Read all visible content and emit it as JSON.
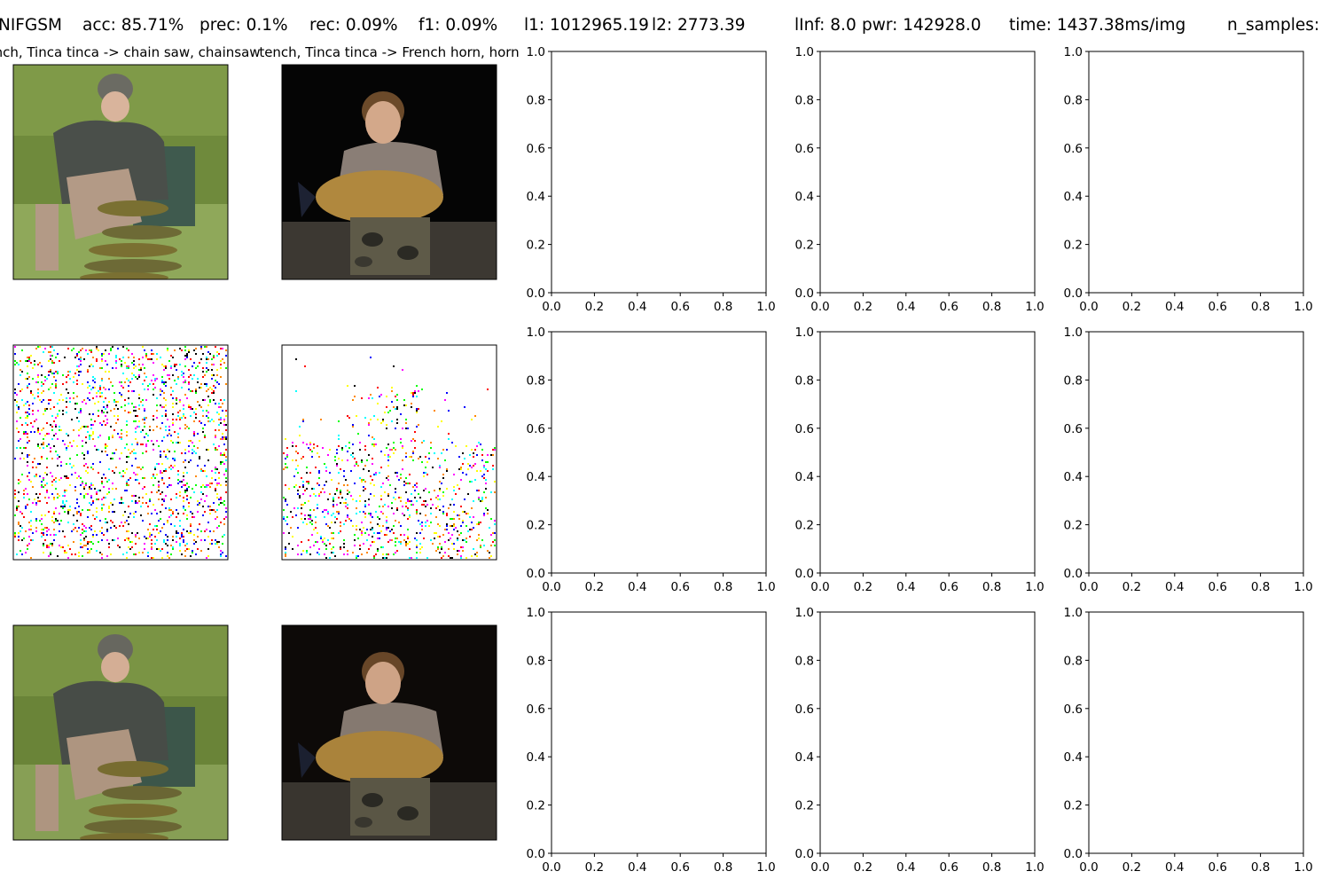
{
  "figure": {
    "suptitle_segments": [
      "NIFGSM",
      "acc: 85.71%",
      "prec: 0.1%",
      "rec: 0.09%",
      "f1: 0.09%",
      "l1: 1012965.19",
      "l2: 2773.39",
      "lInf: 8.0",
      "pwr: 142928.0",
      "time: 1437.38ms/img",
      "n_samples:"
    ]
  },
  "image_columns": [
    {
      "title": "tench, Tinca tinca -> chain saw, chainsaw",
      "original": {
        "name": "man-kneeling-with-tench-fish",
        "colors": {
          "background": "#6f8a3c",
          "grass": "#8fa85a",
          "jacket": "#4a4f4a",
          "hat": "#6b6b63",
          "skin": "#d9b49c",
          "pants": "#b39a86",
          "net": "#3f5a4e",
          "fish": "#7a7032"
        }
      },
      "perturbation": {
        "name": "sparse-noise-perturbation",
        "density": 0.12
      },
      "adversarial": {
        "name": "man-kneeling-with-tench-fish-adversarial",
        "colors": {
          "background": "#6a8438",
          "grass": "#879f55",
          "jacket": "#474c47",
          "hat": "#67675f",
          "skin": "#d4ae95",
          "pants": "#ae9580",
          "net": "#3c564a",
          "fish": "#776c30"
        }
      }
    },
    {
      "title": "tench, Tinca tinca -> French horn, horn",
      "original": {
        "name": "boy-holding-bream-fish",
        "colors": {
          "background": "#050505",
          "shirt": "#8a7e76",
          "hair": "#6b4a2a",
          "skin": "#d3a88a",
          "fish": "#b0883e",
          "camo": "#5e5a48",
          "ground": "#3c3832"
        }
      },
      "perturbation": {
        "name": "sparse-noise-perturbation-lower",
        "density": 0.1
      },
      "adversarial": {
        "name": "boy-holding-bream-fish-adversarial",
        "colors": {
          "background": "#0d0a08",
          "shirt": "#857970",
          "hair": "#674628",
          "skin": "#cea386",
          "fish": "#aa833b",
          "camo": "#5a5645",
          "ground": "#39352f"
        }
      }
    }
  ],
  "chart_data": [
    {
      "type": "scatter",
      "panel": "row1-col3",
      "xlim": [
        0.0,
        1.0
      ],
      "ylim": [
        0.0,
        1.0
      ],
      "xticks": [
        "0.0",
        "0.2",
        "0.4",
        "0.6",
        "0.8",
        "1.0"
      ],
      "yticks": [
        "0.0",
        "0.2",
        "0.4",
        "0.6",
        "0.8",
        "1.0"
      ],
      "series": []
    },
    {
      "type": "scatter",
      "panel": "row1-col4",
      "xlim": [
        0.0,
        1.0
      ],
      "ylim": [
        0.0,
        1.0
      ],
      "xticks": [
        "0.0",
        "0.2",
        "0.4",
        "0.6",
        "0.8",
        "1.0"
      ],
      "yticks": [
        "0.0",
        "0.2",
        "0.4",
        "0.6",
        "0.8",
        "1.0"
      ],
      "series": []
    },
    {
      "type": "scatter",
      "panel": "row1-col5",
      "xlim": [
        0.0,
        1.0
      ],
      "ylim": [
        0.0,
        1.0
      ],
      "xticks": [
        "0.0",
        "0.2",
        "0.4",
        "0.6",
        "0.8",
        "1.0"
      ],
      "yticks": [
        "0.0",
        "0.2",
        "0.4",
        "0.6",
        "0.8",
        "1.0"
      ],
      "series": []
    },
    {
      "type": "scatter",
      "panel": "row2-col3",
      "xlim": [
        0.0,
        1.0
      ],
      "ylim": [
        0.0,
        1.0
      ],
      "xticks": [
        "0.0",
        "0.2",
        "0.4",
        "0.6",
        "0.8",
        "1.0"
      ],
      "yticks": [
        "0.0",
        "0.2",
        "0.4",
        "0.6",
        "0.8",
        "1.0"
      ],
      "series": []
    },
    {
      "type": "scatter",
      "panel": "row2-col4",
      "xlim": [
        0.0,
        1.0
      ],
      "ylim": [
        0.0,
        1.0
      ],
      "xticks": [
        "0.0",
        "0.2",
        "0.4",
        "0.6",
        "0.8",
        "1.0"
      ],
      "yticks": [
        "0.0",
        "0.2",
        "0.4",
        "0.6",
        "0.8",
        "1.0"
      ],
      "series": []
    },
    {
      "type": "scatter",
      "panel": "row2-col5",
      "xlim": [
        0.0,
        1.0
      ],
      "ylim": [
        0.0,
        1.0
      ],
      "xticks": [
        "0.0",
        "0.2",
        "0.4",
        "0.6",
        "0.8",
        "1.0"
      ],
      "yticks": [
        "0.0",
        "0.2",
        "0.4",
        "0.6",
        "0.8",
        "1.0"
      ],
      "series": []
    },
    {
      "type": "scatter",
      "panel": "row3-col3",
      "xlim": [
        0.0,
        1.0
      ],
      "ylim": [
        0.0,
        1.0
      ],
      "xticks": [
        "0.0",
        "0.2",
        "0.4",
        "0.6",
        "0.8",
        "1.0"
      ],
      "yticks": [
        "0.0",
        "0.2",
        "0.4",
        "0.6",
        "0.8",
        "1.0"
      ],
      "series": []
    },
    {
      "type": "scatter",
      "panel": "row3-col4",
      "xlim": [
        0.0,
        1.0
      ],
      "ylim": [
        0.0,
        1.0
      ],
      "xticks": [
        "0.0",
        "0.2",
        "0.4",
        "0.6",
        "0.8",
        "1.0"
      ],
      "yticks": [
        "0.0",
        "0.2",
        "0.4",
        "0.6",
        "0.8",
        "1.0"
      ],
      "series": []
    },
    {
      "type": "scatter",
      "panel": "row3-col5",
      "xlim": [
        0.0,
        1.0
      ],
      "ylim": [
        0.0,
        1.0
      ],
      "xticks": [
        "0.0",
        "0.2",
        "0.4",
        "0.6",
        "0.8",
        "1.0"
      ],
      "yticks": [
        "0.0",
        "0.2",
        "0.4",
        "0.6",
        "0.8",
        "1.0"
      ],
      "series": []
    }
  ],
  "noise_palette": [
    "#ff00ff",
    "#00ffff",
    "#ffff00",
    "#0000ff",
    "#ff0000",
    "#00ff00",
    "#000000",
    "#ff8800"
  ]
}
